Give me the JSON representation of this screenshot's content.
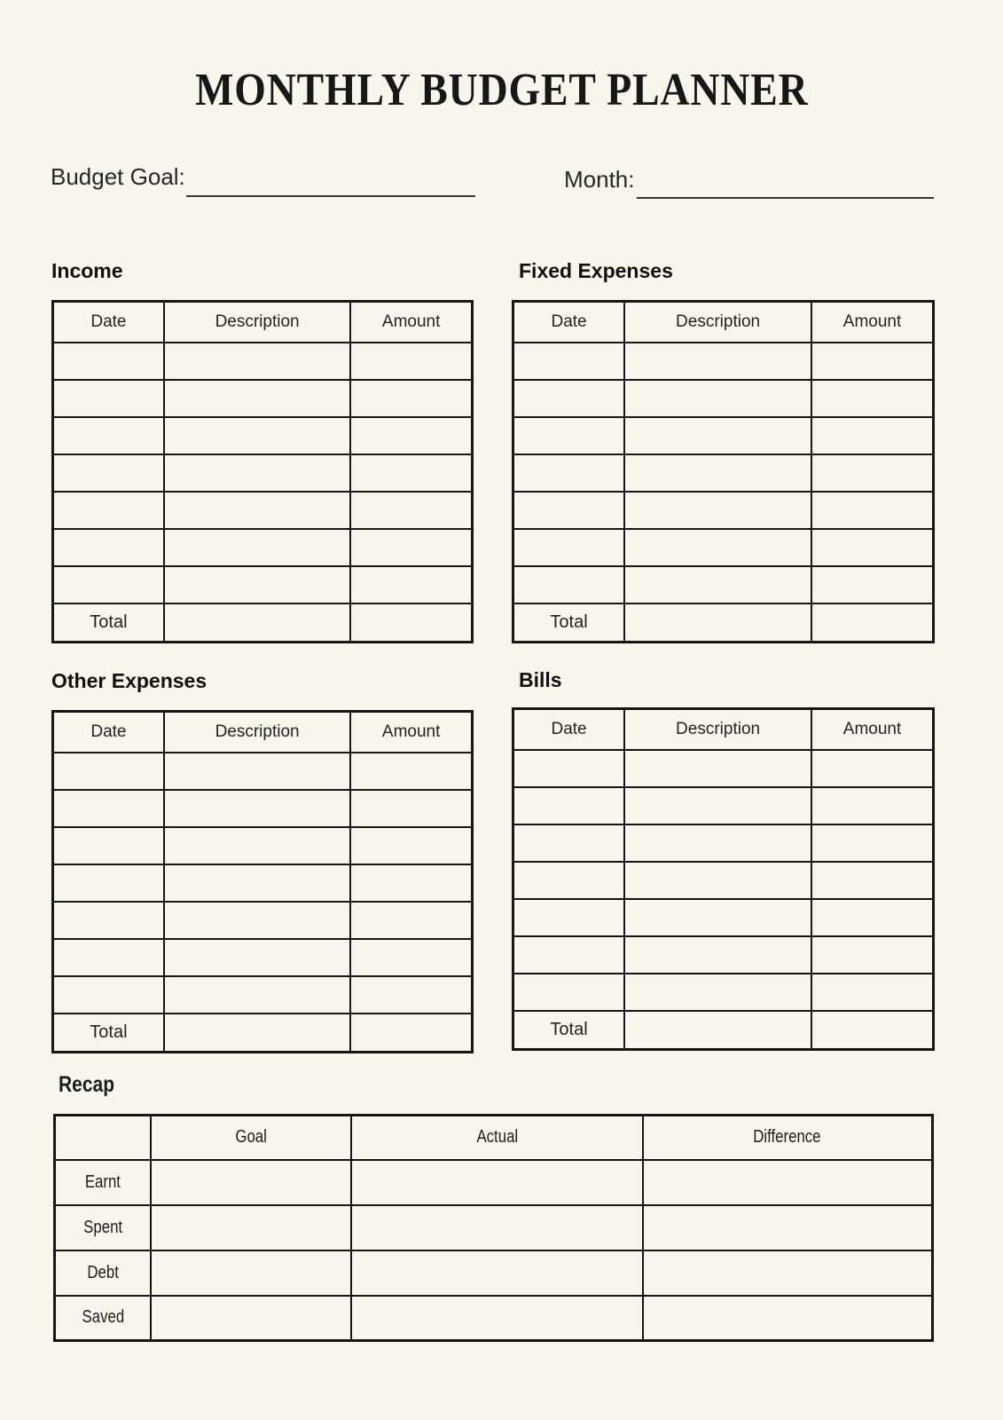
{
  "title": "MONTHLY BUDGET PLANNER",
  "fields": {
    "budget_goal_label": "Budget Goal:",
    "budget_goal_value": "",
    "month_label": "Month:",
    "month_value": ""
  },
  "tables": [
    {
      "heading": "Income",
      "columns": [
        "Date",
        "Description",
        "Amount"
      ],
      "blank_row_count": 7,
      "total_label": "Total"
    },
    {
      "heading": "Fixed Expenses",
      "columns": [
        "Date",
        "Description",
        "Amount"
      ],
      "blank_row_count": 7,
      "total_label": "Total"
    },
    {
      "heading": "Other Expenses",
      "columns": [
        "Date",
        "Description",
        "Amount"
      ],
      "blank_row_count": 7,
      "total_label": "Total"
    },
    {
      "heading": "Bills",
      "columns": [
        "Date",
        "Description",
        "Amount"
      ],
      "blank_row_count": 7,
      "total_label": "Total"
    }
  ],
  "recap": {
    "heading": "Recap",
    "columns": [
      "Goal",
      "Actual",
      "Difference"
    ],
    "row_labels": [
      "Earnt",
      "Spent",
      "Debt",
      "Saved"
    ]
  },
  "colors": {
    "background": "#F8F5EC",
    "ink": "#1E1E1E",
    "border": "#161616"
  }
}
